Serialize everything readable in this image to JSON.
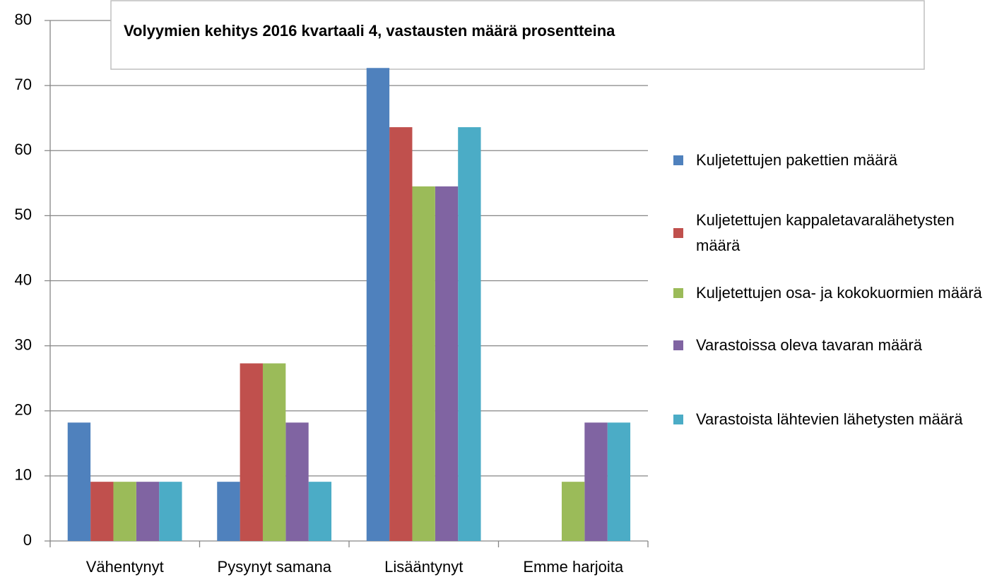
{
  "chart_data": {
    "type": "bar",
    "title": "Volyymien kehitys 2016 kvartaali 4, vastausten määrä prosentteina",
    "categories": [
      "Vähentynyt",
      "Pysynyt samana",
      "Lisääntynyt",
      "Emme harjoita"
    ],
    "series": [
      {
        "name": "Kuljetettujen pakettien määrä",
        "color": "#4f81bd",
        "values": [
          18.2,
          9.1,
          72.7,
          0
        ]
      },
      {
        "name": "Kuljetettujen kappaletavaralähetysten määrä",
        "color": "#c0504d",
        "values": [
          9.1,
          27.3,
          63.6,
          0
        ]
      },
      {
        "name": "Kuljetettujen osa- ja kokokuormien määrä",
        "color": "#9bbb59",
        "values": [
          9.1,
          27.3,
          54.5,
          9.1
        ]
      },
      {
        "name": "Varastoissa oleva tavaran määrä",
        "color": "#8064a2",
        "values": [
          9.1,
          18.2,
          54.5,
          18.2
        ]
      },
      {
        "name": "Varastoista lähtevien lähetysten määrä",
        "color": "#4bacc6",
        "values": [
          9.1,
          9.1,
          63.6,
          18.2
        ]
      }
    ],
    "ylim": [
      0,
      80
    ],
    "yticks": [
      0,
      10,
      20,
      30,
      40,
      50,
      60,
      70,
      80
    ],
    "grid": true,
    "legend": "right"
  }
}
